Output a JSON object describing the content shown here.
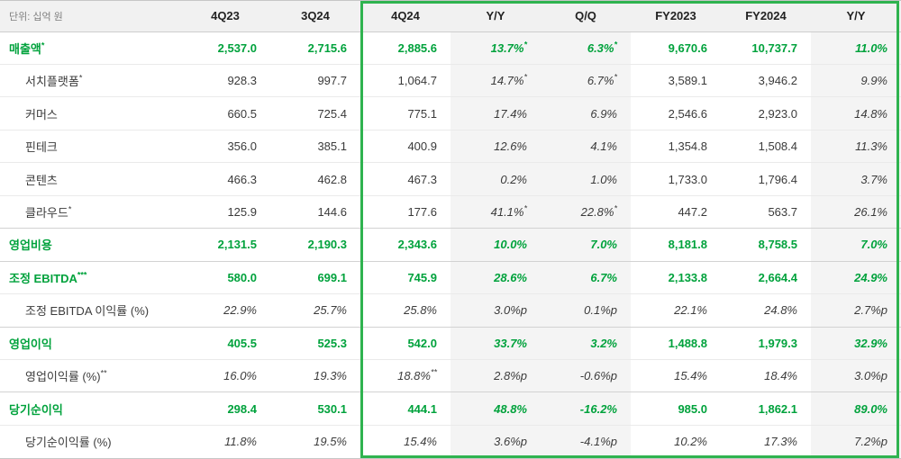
{
  "colors": {
    "accent_green": "#00a23c",
    "box_green": "#2fb34f",
    "header_bg": "#f1f1f1",
    "shade_bg": "#f4f4f4"
  },
  "chart_data": {
    "type": "table",
    "unit_label": "단위: 십억 원",
    "columns": [
      "4Q23",
      "3Q24",
      "4Q24",
      "Y/Y",
      "Q/Q",
      "FY2023",
      "FY2024",
      "Y/Y"
    ],
    "column_keys": [
      "4q23",
      "3q24",
      "4q24",
      "yoy",
      "qoq",
      "fy2023",
      "fy2024",
      "fy-yoy"
    ],
    "highlight_columns": [
      "4Q24",
      "Y/Y",
      "Q/Q",
      "FY2023",
      "FY2024",
      "Y/Y"
    ],
    "rows": [
      {
        "key": "revenue",
        "label": "매출액*",
        "type": "section",
        "values": [
          "2,537.0",
          "2,715.6",
          "2,885.6",
          "13.7%*",
          "6.3%*",
          "9,670.6",
          "10,737.7",
          "11.0%"
        ]
      },
      {
        "key": "search-platform",
        "label": "서치플랫폼*",
        "type": "sub",
        "values": [
          "928.3",
          "997.7",
          "1,064.7",
          "14.7%*",
          "6.7%*",
          "3,589.1",
          "3,946.2",
          "9.9%"
        ]
      },
      {
        "key": "commerce",
        "label": "커머스",
        "type": "sub",
        "values": [
          "660.5",
          "725.4",
          "775.1",
          "17.4%",
          "6.9%",
          "2,546.6",
          "2,923.0",
          "14.8%"
        ]
      },
      {
        "key": "fintech",
        "label": "핀테크",
        "type": "sub",
        "values": [
          "356.0",
          "385.1",
          "400.9",
          "12.6%",
          "4.1%",
          "1,354.8",
          "1,508.4",
          "11.3%"
        ]
      },
      {
        "key": "content",
        "label": "콘텐츠",
        "type": "sub",
        "values": [
          "466.3",
          "462.8",
          "467.3",
          "0.2%",
          "1.0%",
          "1,733.0",
          "1,796.4",
          "3.7%"
        ]
      },
      {
        "key": "cloud",
        "label": "클라우드*",
        "type": "sub",
        "values": [
          "125.9",
          "144.6",
          "177.6",
          "41.1%*",
          "22.8%*",
          "447.2",
          "563.7",
          "26.1%"
        ]
      },
      {
        "key": "operating-expenses",
        "label": "영업비용",
        "type": "section",
        "values": [
          "2,131.5",
          "2,190.3",
          "2,343.6",
          "10.0%",
          "7.0%",
          "8,181.8",
          "8,758.5",
          "7.0%"
        ]
      },
      {
        "key": "adjusted-ebitda",
        "label": "조정 EBITDA***",
        "type": "section",
        "values": [
          "580.0",
          "699.1",
          "745.9",
          "28.6%",
          "6.7%",
          "2,133.8",
          "2,664.4",
          "24.9%"
        ]
      },
      {
        "key": "adjusted-ebitda-margin",
        "label": "조정 EBITDA 이익률 (%)",
        "type": "ratio",
        "values": [
          "22.9%",
          "25.7%",
          "25.8%",
          "3.0%p",
          "0.1%p",
          "22.1%",
          "24.8%",
          "2.7%p"
        ]
      },
      {
        "key": "operating-profit",
        "label": "영업이익",
        "type": "section",
        "values": [
          "405.5",
          "525.3",
          "542.0",
          "33.7%",
          "3.2%",
          "1,488.8",
          "1,979.3",
          "32.9%"
        ]
      },
      {
        "key": "operating-profit-margin",
        "label": "영업이익률 (%)**",
        "type": "ratio",
        "values": [
          "16.0%",
          "19.3%",
          "18.8%**",
          "2.8%p",
          "-0.6%p",
          "15.4%",
          "18.4%",
          "3.0%p"
        ]
      },
      {
        "key": "net-profit",
        "label": "당기순이익",
        "type": "section",
        "values": [
          "298.4",
          "530.1",
          "444.1",
          "48.8%",
          "-16.2%",
          "985.0",
          "1,862.1",
          "89.0%"
        ]
      },
      {
        "key": "net-profit-margin",
        "label": "당기순이익률 (%)",
        "type": "ratio",
        "values": [
          "11.8%",
          "19.5%",
          "15.4%",
          "3.6%p",
          "-4.1%p",
          "10.2%",
          "17.3%",
          "7.2%p"
        ]
      }
    ]
  }
}
